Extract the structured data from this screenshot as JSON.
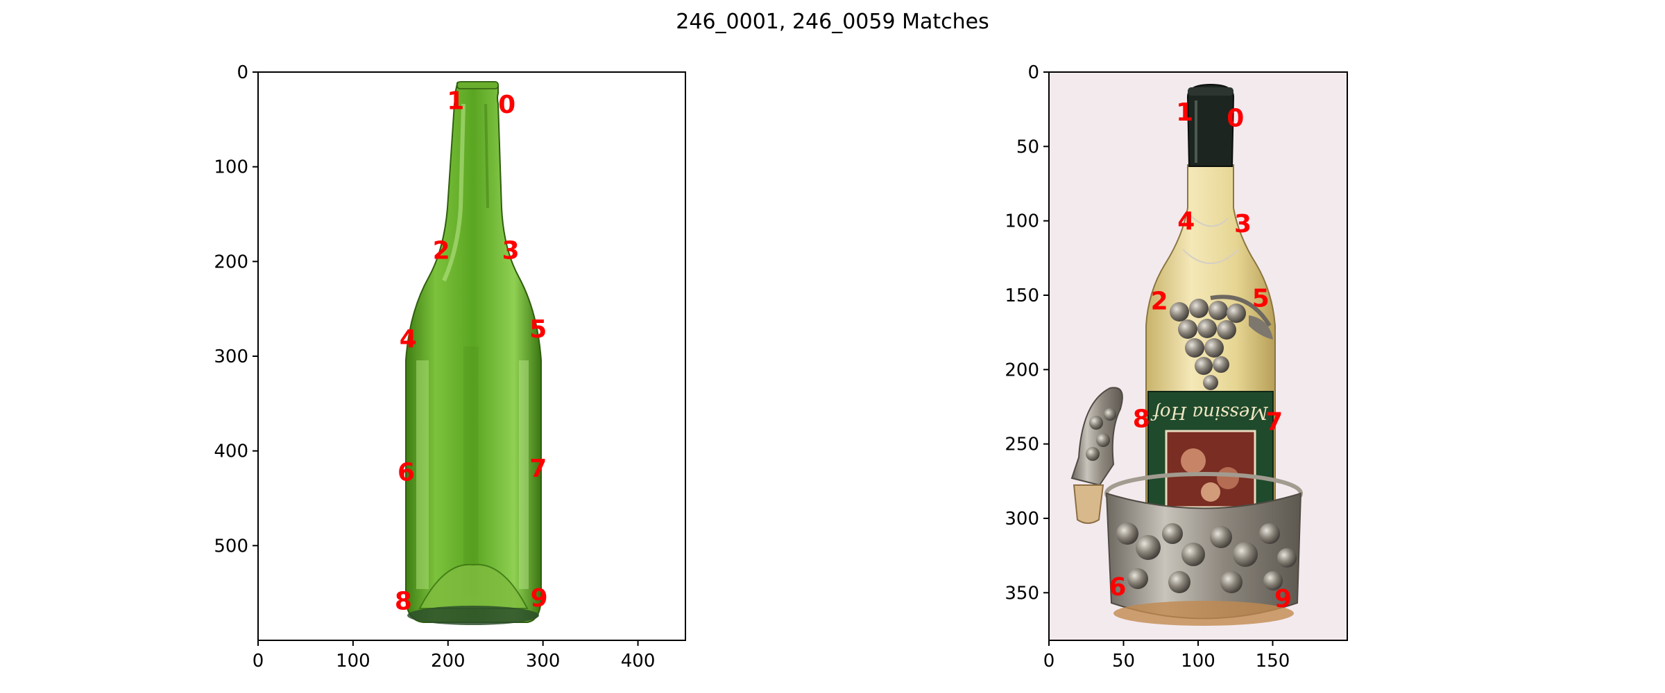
{
  "title": "246_0001, 246_0059 Matches",
  "colors": {
    "keypoint": "#ff0000",
    "left_background": "#ffffff",
    "right_background": "#f3eaee",
    "glass_green": "#5ea82a",
    "glass_green_dark": "#3d7a16",
    "wine_yellow": "#e9d89a",
    "label_green": "#1f4a2c",
    "foil_dark": "#1d2520",
    "silver": "#9a948c"
  },
  "panels": [
    {
      "image_id": "246_0001",
      "subject": "empty green glass wine bottle",
      "x_ticks": [
        "0",
        "100",
        "200",
        "300",
        "400"
      ],
      "y_ticks": [
        "0",
        "100",
        "200",
        "300",
        "400",
        "500"
      ],
      "keypoints": [
        {
          "id": "0",
          "x": 262,
          "y": 36
        },
        {
          "id": "1",
          "x": 208,
          "y": 32
        },
        {
          "id": "2",
          "x": 193,
          "y": 190
        },
        {
          "id": "3",
          "x": 266,
          "y": 190
        },
        {
          "id": "4",
          "x": 158,
          "y": 283
        },
        {
          "id": "5",
          "x": 295,
          "y": 273
        },
        {
          "id": "6",
          "x": 156,
          "y": 424
        },
        {
          "id": "7",
          "x": 295,
          "y": 420
        },
        {
          "id": "8",
          "x": 153,
          "y": 560
        },
        {
          "id": "9",
          "x": 296,
          "y": 557
        }
      ]
    },
    {
      "image_id": "246_0059",
      "subject": "white wine bottle with silver grape coaster and stopper",
      "x_ticks": [
        "0",
        "50",
        "100",
        "150"
      ],
      "y_ticks": [
        "0",
        "50",
        "100",
        "150",
        "200",
        "250",
        "300",
        "350"
      ],
      "label_text": "Messina Hof",
      "keypoints": [
        {
          "id": "0",
          "x": 125,
          "y": 32
        },
        {
          "id": "1",
          "x": 91,
          "y": 28
        },
        {
          "id": "2",
          "x": 74,
          "y": 155
        },
        {
          "id": "3",
          "x": 130,
          "y": 103
        },
        {
          "id": "4",
          "x": 92,
          "y": 101
        },
        {
          "id": "5",
          "x": 142,
          "y": 153
        },
        {
          "id": "6",
          "x": 46,
          "y": 347
        },
        {
          "id": "7",
          "x": 151,
          "y": 236
        },
        {
          "id": "8",
          "x": 62,
          "y": 234
        },
        {
          "id": "9",
          "x": 157,
          "y": 355
        }
      ]
    }
  ]
}
